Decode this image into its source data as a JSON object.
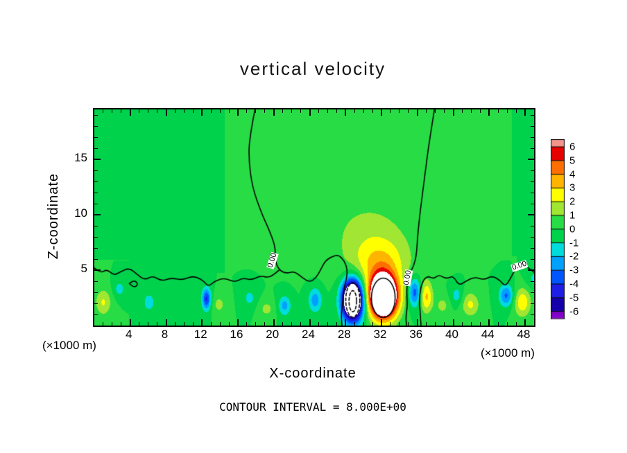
{
  "title": "vertical velocity",
  "axes": {
    "x_label": "X-coordinate",
    "y_label": "Z-coordinate",
    "unit_label": "(×1000 m)",
    "x_ticks": [
      4,
      8,
      12,
      16,
      20,
      24,
      28,
      32,
      36,
      40,
      44,
      48
    ],
    "y_ticks": [
      5,
      10,
      15
    ]
  },
  "caption": "CONTOUR INTERVAL = 8.000E+00",
  "colorbar": {
    "tick_labels": [
      "6",
      "5",
      "4",
      "3",
      "2",
      "1",
      "0",
      "-1",
      "-2",
      "-3",
      "-4",
      "-5",
      "-6"
    ],
    "colors_top_to_bottom": [
      "#f2938c",
      "#e60000",
      "#ff6e00",
      "#ffb400",
      "#ffff00",
      "#a0e632",
      "#28dc46",
      "#00d24b",
      "#00dcdc",
      "#00a0ff",
      "#0055ff",
      "#1e1ee6",
      "#1400aa",
      "#8200c8"
    ]
  },
  "contour_labels": [
    {
      "text": "0.00",
      "x": 19.9,
      "z": 5.9,
      "angle": -72
    },
    {
      "text": "0.00",
      "x": 34.9,
      "z": 4.3,
      "angle": -80
    },
    {
      "text": "0.00",
      "x": 47.4,
      "z": 5.4,
      "angle": -18
    }
  ],
  "chart_data": {
    "type": "heatmap",
    "title": "vertical velocity",
    "xlabel": "X-coordinate (×1000 m)",
    "ylabel": "Z-coordinate (×1000 m)",
    "x_range": [
      0,
      49
    ],
    "z_range": [
      0,
      19.5
    ],
    "colorbar_range": [
      -6,
      6
    ],
    "contour_interval": 8,
    "zero_contour_label": "0.00",
    "background_value": 0,
    "field_model": "sum_of_gaussians",
    "features": [
      {
        "a": 14.0,
        "x": 32.2,
        "z": 2.6,
        "sx": 1.55,
        "sz": 1.9
      },
      {
        "a": -13.0,
        "x": 28.8,
        "z": 2.3,
        "sx": 1.15,
        "sz": 1.8
      },
      {
        "a": 2.6,
        "x": 31.8,
        "z": 5.6,
        "sx": 3.1,
        "sz": 2.3
      },
      {
        "a": 1.2,
        "x": 30.5,
        "z": 8.5,
        "sx": 5.0,
        "sz": 3.5
      },
      {
        "a": -3.6,
        "x": 35.7,
        "z": 3.0,
        "sx": 0.7,
        "sz": 1.3
      },
      {
        "a": 3.2,
        "x": 37.0,
        "z": 2.6,
        "sx": 0.7,
        "sz": 1.4
      },
      {
        "a": -2.6,
        "x": 24.6,
        "z": 2.3,
        "sx": 0.75,
        "sz": 1.1
      },
      {
        "a": -2.4,
        "x": 21.2,
        "z": 1.8,
        "sx": 0.7,
        "sz": 0.9
      },
      {
        "a": -4.2,
        "x": 12.5,
        "z": 2.4,
        "sx": 0.5,
        "sz": 1.0
      },
      {
        "a": 1.3,
        "x": 13.9,
        "z": 1.9,
        "sx": 0.8,
        "sz": 0.9
      },
      {
        "a": -1.6,
        "x": 6.1,
        "z": 2.1,
        "sx": 0.7,
        "sz": 0.9
      },
      {
        "a": 2.1,
        "x": 1.0,
        "z": 2.1,
        "sx": 0.9,
        "sz": 1.2
      },
      {
        "a": -1.4,
        "x": 2.8,
        "z": 3.3,
        "sx": 0.7,
        "sz": 0.8
      },
      {
        "a": 2.2,
        "x": 41.9,
        "z": 1.9,
        "sx": 1.0,
        "sz": 1.1
      },
      {
        "a": -1.5,
        "x": 40.4,
        "z": 2.7,
        "sx": 0.7,
        "sz": 0.9
      },
      {
        "a": -3.2,
        "x": 45.9,
        "z": 2.7,
        "sx": 0.8,
        "sz": 1.0
      },
      {
        "a": 2.8,
        "x": 47.7,
        "z": 2.1,
        "sx": 0.95,
        "sz": 1.3
      },
      {
        "a": -1.2,
        "x": 49.0,
        "z": 4.2,
        "sx": 0.9,
        "sz": 0.9
      },
      {
        "a": -1.3,
        "x": 17.3,
        "z": 2.5,
        "sx": 0.8,
        "sz": 0.9
      },
      {
        "a": 1.3,
        "x": 19.2,
        "z": 1.5,
        "sx": 0.9,
        "sz": 0.8
      },
      {
        "a": 1.3,
        "x": 38.8,
        "z": 1.8,
        "sx": 0.8,
        "sz": 0.9
      }
    ],
    "palette_bins": [
      "#e60000",
      "#ff6e00",
      "#ffb400",
      "#ffff00",
      "#a0e632",
      "#28dc46",
      "#00d24b",
      "#00dcdc",
      "#00a0ff",
      "#0055ff",
      "#1e1ee6",
      "#1400aa"
    ],
    "out_of_range_color": "#ffffff",
    "contour_lines": [
      {
        "level": 0,
        "points": [
          [
            17.9,
            19.5
          ],
          [
            17.3,
            17.0
          ],
          [
            17.2,
            15.0
          ],
          [
            17.6,
            12.5
          ],
          [
            18.6,
            10.2
          ],
          [
            19.6,
            8.4
          ],
          [
            20.2,
            7.0
          ],
          [
            20.1,
            5.9
          ],
          [
            20.6,
            5.0
          ],
          [
            21.4,
            4.7
          ],
          [
            22.3,
            4.9
          ],
          [
            23.2,
            4.3
          ],
          [
            24.0,
            3.9
          ],
          [
            24.7,
            4.3
          ],
          [
            25.2,
            5.0
          ],
          [
            25.7,
            5.8
          ],
          [
            26.4,
            6.2
          ],
          [
            27.2,
            6.4
          ],
          [
            27.9,
            5.8
          ],
          [
            28.2,
            5.0
          ],
          [
            28.1,
            4.2
          ],
          [
            27.8,
            3.3
          ],
          [
            27.7,
            2.2
          ],
          [
            27.5,
            1.0
          ],
          [
            27.6,
            0
          ]
        ]
      },
      {
        "level": 0,
        "points": [
          [
            0,
            5.2
          ],
          [
            0.7,
            4.7
          ],
          [
            1.4,
            5.1
          ],
          [
            2.2,
            4.5
          ],
          [
            3.0,
            4.9
          ],
          [
            3.9,
            5.2
          ],
          [
            4.8,
            4.6
          ],
          [
            5.6,
            4.1
          ],
          [
            6.5,
            4.5
          ],
          [
            7.5,
            4.0
          ],
          [
            8.6,
            4.3
          ],
          [
            9.8,
            4.1
          ],
          [
            11.0,
            4.5
          ],
          [
            12.1,
            4.1
          ],
          [
            12.7,
            3.5
          ],
          [
            13.4,
            4.0
          ],
          [
            14.5,
            4.3
          ],
          [
            15.7,
            3.9
          ],
          [
            16.5,
            4.3
          ],
          [
            17.5,
            4.1
          ],
          [
            18.5,
            4.5
          ],
          [
            19.5,
            4.3
          ],
          [
            20.6,
            5.0
          ]
        ]
      },
      {
        "level": 0,
        "points": [
          [
            37.9,
            19.5
          ],
          [
            37.3,
            16.5
          ],
          [
            36.9,
            14.0
          ],
          [
            36.5,
            11.5
          ],
          [
            36.2,
            9.5
          ],
          [
            36.0,
            7.8
          ],
          [
            35.9,
            6.4
          ],
          [
            35.6,
            5.4
          ],
          [
            35.2,
            4.8
          ],
          [
            34.9,
            4.0
          ],
          [
            34.8,
            3.0
          ],
          [
            34.9,
            1.8
          ],
          [
            34.7,
            0.7
          ],
          [
            34.8,
            0
          ]
        ]
      },
      {
        "level": 0,
        "points": [
          [
            36.4,
            0
          ],
          [
            36.3,
            1.2
          ],
          [
            36.2,
            2.6
          ],
          [
            36.5,
            3.9
          ],
          [
            37.1,
            4.5
          ],
          [
            37.8,
            4.2
          ],
          [
            38.4,
            4.6
          ],
          [
            39.2,
            4.2
          ],
          [
            40.0,
            4.5
          ],
          [
            40.6,
            3.6
          ],
          [
            41.4,
            4.0
          ],
          [
            42.4,
            4.4
          ],
          [
            43.4,
            4.1
          ],
          [
            44.3,
            4.5
          ],
          [
            45.2,
            4.1
          ],
          [
            45.8,
            3.5
          ],
          [
            46.4,
            4.3
          ],
          [
            46.9,
            5.1
          ],
          [
            47.6,
            5.6
          ],
          [
            48.4,
            5.2
          ],
          [
            49.0,
            4.8
          ]
        ]
      },
      {
        "level": 0,
        "points": [
          [
            3.9,
            3.8
          ],
          [
            4.4,
            3.4
          ],
          [
            4.9,
            3.7
          ],
          [
            4.5,
            4.1
          ],
          [
            3.9,
            3.8
          ]
        ]
      }
    ],
    "core_loops": [
      {
        "level": -8,
        "cx": 28.8,
        "cz": 2.3,
        "rx": 0.78,
        "rz": 1.55,
        "dashed": true
      },
      {
        "level": -16,
        "cx": 28.8,
        "cz": 2.2,
        "rx": 0.42,
        "rz": 0.95,
        "dashed": true
      },
      {
        "level": 8,
        "cx": 32.2,
        "cz": 2.5,
        "rx": 1.32,
        "rz": 1.78,
        "dashed": false
      }
    ]
  }
}
